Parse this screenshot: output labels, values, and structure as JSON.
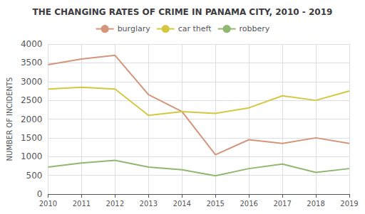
{
  "chart_data": {
    "type": "line",
    "title": "THE CHANGING RATES OF CRIME IN PANAMA CITY, 2010 - 2019",
    "ylabel": "NUMBER OF INCIDENTS",
    "categories": [
      "2010",
      "2011",
      "2012",
      "2013",
      "2014",
      "2015",
      "2016",
      "2017",
      "2018",
      "2019"
    ],
    "series": [
      {
        "name": "burglary",
        "color": "#d4957a",
        "values": [
          3450,
          3600,
          3700,
          2650,
          2200,
          1050,
          1450,
          1350,
          1500,
          1350
        ]
      },
      {
        "name": "car theft",
        "color": "#d4c840",
        "values": [
          2800,
          2850,
          2800,
          2100,
          2200,
          2150,
          2300,
          2620,
          2500,
          2750
        ]
      },
      {
        "name": "robbery",
        "color": "#90b870",
        "values": [
          720,
          830,
          900,
          720,
          650,
          490,
          680,
          800,
          580,
          680
        ]
      }
    ],
    "ylim": [
      0,
      4000
    ],
    "yticks": [
      0,
      500,
      1000,
      1500,
      2000,
      2500,
      3000,
      3500,
      4000
    ],
    "grid": true,
    "legend": "top"
  }
}
